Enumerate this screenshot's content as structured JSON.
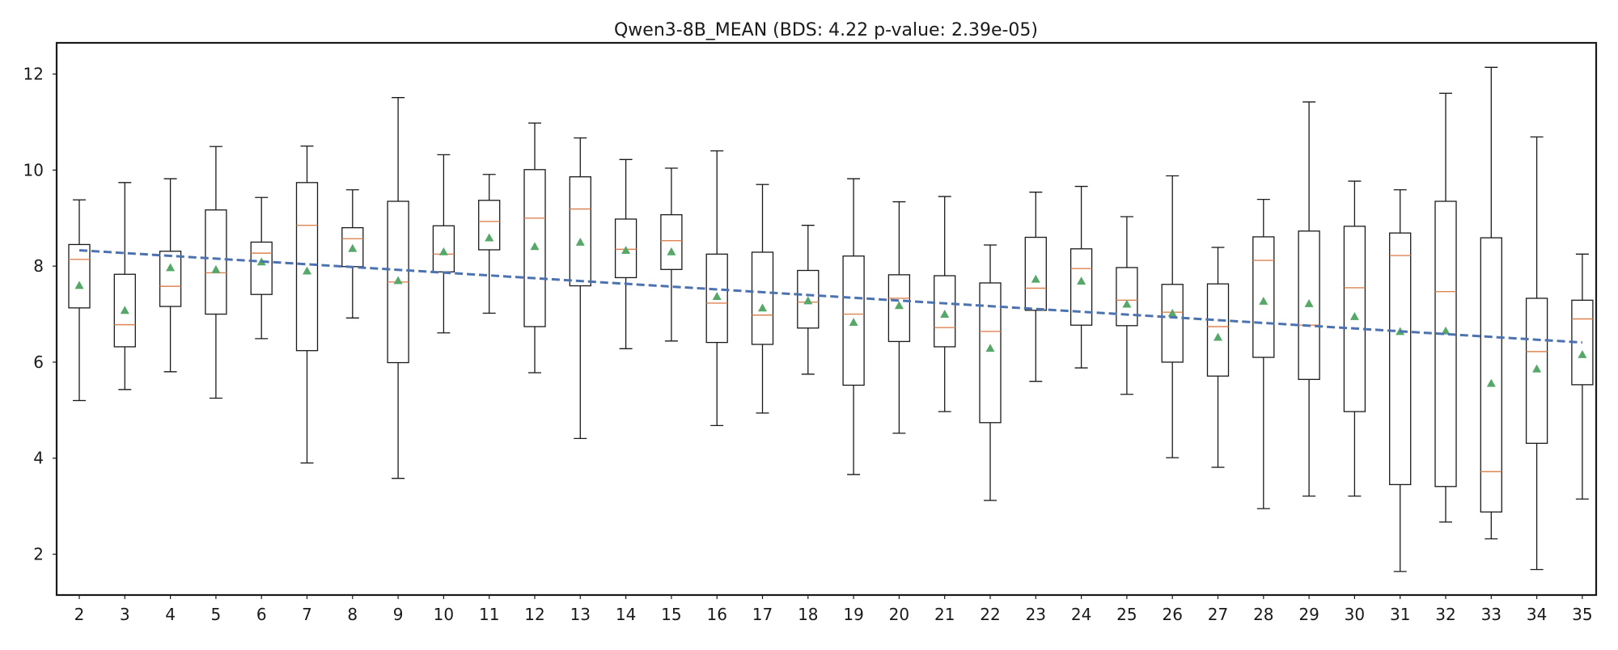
{
  "chart_data": {
    "type": "box",
    "title": "Qwen3-8B_MEAN (BDS: 4.22 p-value: 2.39e-05)",
    "xlabel": "",
    "ylabel": "",
    "ylim": [
      1.15,
      12.65
    ],
    "y_ticks": [
      2,
      4,
      6,
      8,
      10,
      12
    ],
    "categories": [
      "2",
      "3",
      "4",
      "5",
      "6",
      "7",
      "8",
      "9",
      "10",
      "11",
      "12",
      "13",
      "14",
      "15",
      "16",
      "17",
      "18",
      "19",
      "20",
      "21",
      "22",
      "23",
      "24",
      "25",
      "26",
      "27",
      "28",
      "29",
      "30",
      "31",
      "32",
      "33",
      "34",
      "35"
    ],
    "boxes": [
      {
        "whisker_low": 5.2,
        "q1": 7.13,
        "median": 8.14,
        "q3": 8.45,
        "whisker_high": 9.38,
        "mean": 7.6
      },
      {
        "whisker_low": 5.43,
        "q1": 6.32,
        "median": 6.78,
        "q3": 7.83,
        "whisker_high": 9.74,
        "mean": 7.08
      },
      {
        "whisker_low": 5.8,
        "q1": 7.16,
        "median": 7.58,
        "q3": 8.31,
        "whisker_high": 9.82,
        "mean": 7.97
      },
      {
        "whisker_low": 5.25,
        "q1": 7.0,
        "median": 7.86,
        "q3": 9.17,
        "whisker_high": 10.49,
        "mean": 7.93
      },
      {
        "whisker_low": 6.49,
        "q1": 7.41,
        "median": 8.27,
        "q3": 8.5,
        "whisker_high": 9.43,
        "mean": 8.09
      },
      {
        "whisker_low": 3.9,
        "q1": 6.24,
        "median": 8.85,
        "q3": 9.74,
        "whisker_high": 10.5,
        "mean": 7.9
      },
      {
        "whisker_low": 6.92,
        "q1": 7.99,
        "median": 8.57,
        "q3": 8.8,
        "whisker_high": 9.59,
        "mean": 8.37
      },
      {
        "whisker_low": 3.58,
        "q1": 5.99,
        "median": 7.67,
        "q3": 9.35,
        "whisker_high": 11.51,
        "mean": 7.7
      },
      {
        "whisker_low": 6.61,
        "q1": 7.88,
        "median": 8.25,
        "q3": 8.84,
        "whisker_high": 10.32,
        "mean": 8.3
      },
      {
        "whisker_low": 7.02,
        "q1": 8.34,
        "median": 8.93,
        "q3": 9.37,
        "whisker_high": 9.91,
        "mean": 8.59
      },
      {
        "whisker_low": 5.78,
        "q1": 6.74,
        "median": 9.0,
        "q3": 10.01,
        "whisker_high": 10.98,
        "mean": 8.41
      },
      {
        "whisker_low": 4.41,
        "q1": 7.59,
        "median": 9.19,
        "q3": 9.86,
        "whisker_high": 10.67,
        "mean": 8.5
      },
      {
        "whisker_low": 6.28,
        "q1": 7.76,
        "median": 8.35,
        "q3": 8.98,
        "whisker_high": 10.22,
        "mean": 8.33
      },
      {
        "whisker_low": 6.44,
        "q1": 7.93,
        "median": 8.53,
        "q3": 9.07,
        "whisker_high": 10.04,
        "mean": 8.3
      },
      {
        "whisker_low": 4.68,
        "q1": 6.41,
        "median": 7.23,
        "q3": 8.25,
        "whisker_high": 10.4,
        "mean": 7.37
      },
      {
        "whisker_low": 4.94,
        "q1": 6.37,
        "median": 6.98,
        "q3": 8.29,
        "whisker_high": 9.7,
        "mean": 7.13
      },
      {
        "whisker_low": 5.75,
        "q1": 6.71,
        "median": 7.25,
        "q3": 7.91,
        "whisker_high": 8.85,
        "mean": 7.28
      },
      {
        "whisker_low": 3.66,
        "q1": 5.52,
        "median": 7.0,
        "q3": 8.21,
        "whisker_high": 9.82,
        "mean": 6.83
      },
      {
        "whisker_low": 4.52,
        "q1": 6.43,
        "median": 7.33,
        "q3": 7.82,
        "whisker_high": 9.34,
        "mean": 7.18
      },
      {
        "whisker_low": 4.97,
        "q1": 6.32,
        "median": 6.72,
        "q3": 7.8,
        "whisker_high": 9.45,
        "mean": 7.0
      },
      {
        "whisker_low": 3.12,
        "q1": 4.74,
        "median": 6.64,
        "q3": 7.65,
        "whisker_high": 8.44,
        "mean": 6.29
      },
      {
        "whisker_low": 5.6,
        "q1": 7.08,
        "median": 7.54,
        "q3": 8.6,
        "whisker_high": 9.54,
        "mean": 7.73
      },
      {
        "whisker_low": 5.88,
        "q1": 6.77,
        "median": 7.95,
        "q3": 8.36,
        "whisker_high": 9.66,
        "mean": 7.69
      },
      {
        "whisker_low": 5.33,
        "q1": 6.76,
        "median": 7.29,
        "q3": 7.97,
        "whisker_high": 9.03,
        "mean": 7.21
      },
      {
        "whisker_low": 4.01,
        "q1": 6.0,
        "median": 7.04,
        "q3": 7.62,
        "whisker_high": 9.88,
        "mean": 7.02
      },
      {
        "whisker_low": 3.81,
        "q1": 5.71,
        "median": 6.74,
        "q3": 7.63,
        "whisker_high": 8.39,
        "mean": 6.52
      },
      {
        "whisker_low": 2.95,
        "q1": 6.1,
        "median": 8.12,
        "q3": 8.61,
        "whisker_high": 9.39,
        "mean": 7.27
      },
      {
        "whisker_low": 3.21,
        "q1": 5.64,
        "median": 6.77,
        "q3": 8.73,
        "whisker_high": 11.42,
        "mean": 7.22
      },
      {
        "whisker_low": 3.21,
        "q1": 4.97,
        "median": 7.55,
        "q3": 8.83,
        "whisker_high": 9.77,
        "mean": 6.95
      },
      {
        "whisker_low": 1.64,
        "q1": 3.45,
        "median": 8.22,
        "q3": 8.69,
        "whisker_high": 9.59,
        "mean": 6.64
      },
      {
        "whisker_low": 2.67,
        "q1": 3.41,
        "median": 7.47,
        "q3": 9.35,
        "whisker_high": 11.6,
        "mean": 6.65
      },
      {
        "whisker_low": 2.32,
        "q1": 2.88,
        "median": 3.72,
        "q3": 8.59,
        "whisker_high": 12.14,
        "mean": 5.56
      },
      {
        "whisker_low": 1.68,
        "q1": 4.31,
        "median": 6.22,
        "q3": 7.33,
        "whisker_high": 10.69,
        "mean": 5.86
      },
      {
        "whisker_low": 3.15,
        "q1": 5.53,
        "median": 6.9,
        "q3": 7.29,
        "whisker_high": 8.25,
        "mean": 6.16
      }
    ],
    "trend_line": {
      "x_start": "2",
      "x_end": "35",
      "y_start": 8.33,
      "y_end": 6.41,
      "style": "dashed"
    },
    "grid": false,
    "legend": "none",
    "colors": {
      "box": "#1a1a1a",
      "median": "#dd8452",
      "mean_marker": "#55a868",
      "trend": "#4c72b0",
      "text": "#1a1a1a"
    }
  }
}
